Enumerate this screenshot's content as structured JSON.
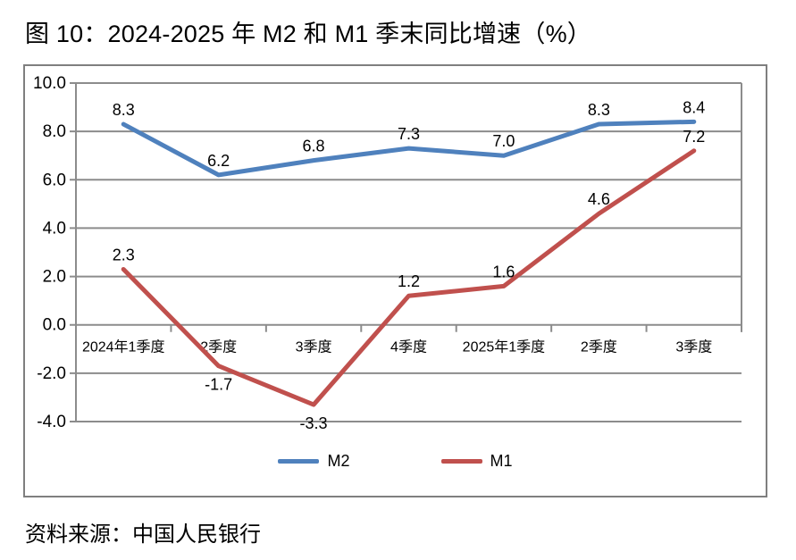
{
  "title": "图 10：2024-2025 年 M2 和 M1 季末同比增速（%）",
  "source": "资料来源：中国人民银行",
  "chart_data": {
    "type": "line",
    "categories": [
      "2024年1季度",
      "2季度",
      "3季度",
      "4季度",
      "2025年1季度",
      "2季度",
      "3季度"
    ],
    "series": [
      {
        "name": "M2",
        "color": "#4F81BD",
        "values": [
          8.3,
          6.2,
          6.8,
          7.3,
          7.0,
          8.3,
          8.4
        ]
      },
      {
        "name": "M1",
        "color": "#C0504D",
        "values": [
          2.3,
          -1.7,
          -3.3,
          1.2,
          1.6,
          4.6,
          7.2
        ]
      }
    ],
    "title": "",
    "xlabel": "",
    "ylabel": "",
    "ylim": [
      -4,
      10
    ],
    "y_tick_step": 2,
    "y_tick_labels": [
      "10.0",
      "8.0",
      "6.0",
      "4.0",
      "2.0",
      "0.0",
      "-2.0",
      "-4.0"
    ],
    "grid": "horizontal-only",
    "legend_position": "bottom",
    "gridline_color": "#8C8C8C",
    "frame_color": "#7F7F7F",
    "label_color": "#000000",
    "data_labels_shown": true
  }
}
